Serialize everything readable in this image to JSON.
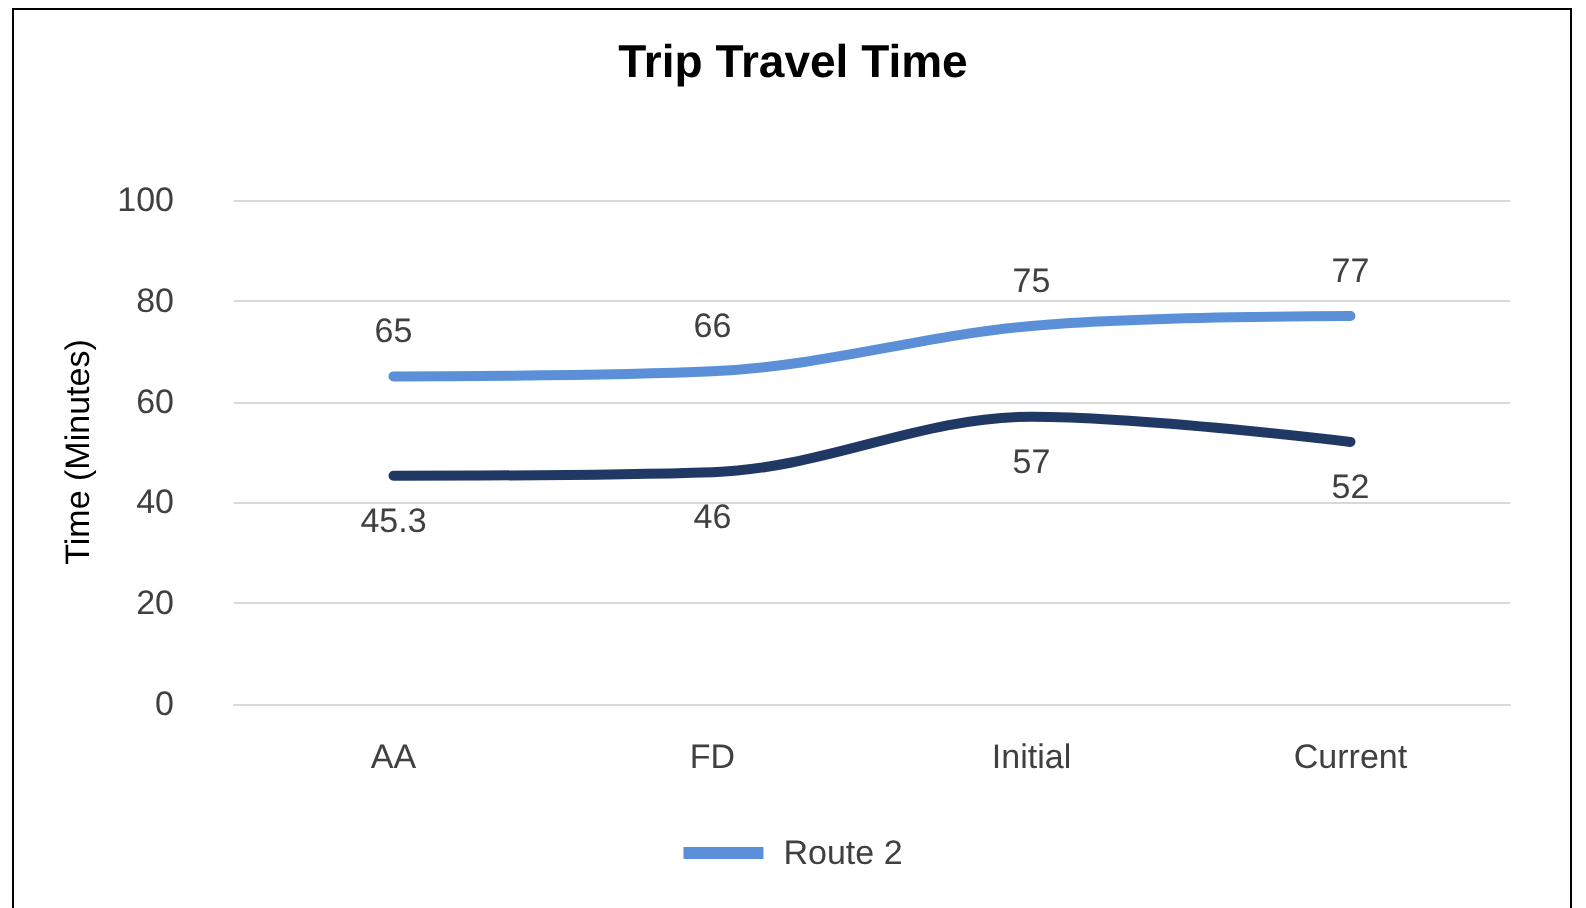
{
  "chart_data": {
    "type": "line",
    "title": "Trip Travel Time",
    "ylabel": "Time (Minutes)",
    "categories": [
      "AA",
      "FD",
      "Initial",
      "Current"
    ],
    "series": [
      {
        "color": "#203864",
        "values": [
          45.3,
          46,
          57,
          52
        ]
      },
      {
        "name": "Route 2",
        "color": "#5b8fd8",
        "values": [
          65,
          66,
          75,
          77
        ]
      }
    ],
    "ylim": [
      0,
      100
    ],
    "yticks": [
      0,
      20,
      40,
      60,
      80,
      100
    ],
    "grid": "y",
    "legend": "bottom",
    "data_labels": true,
    "marker": "none",
    "line_style": "solid"
  }
}
